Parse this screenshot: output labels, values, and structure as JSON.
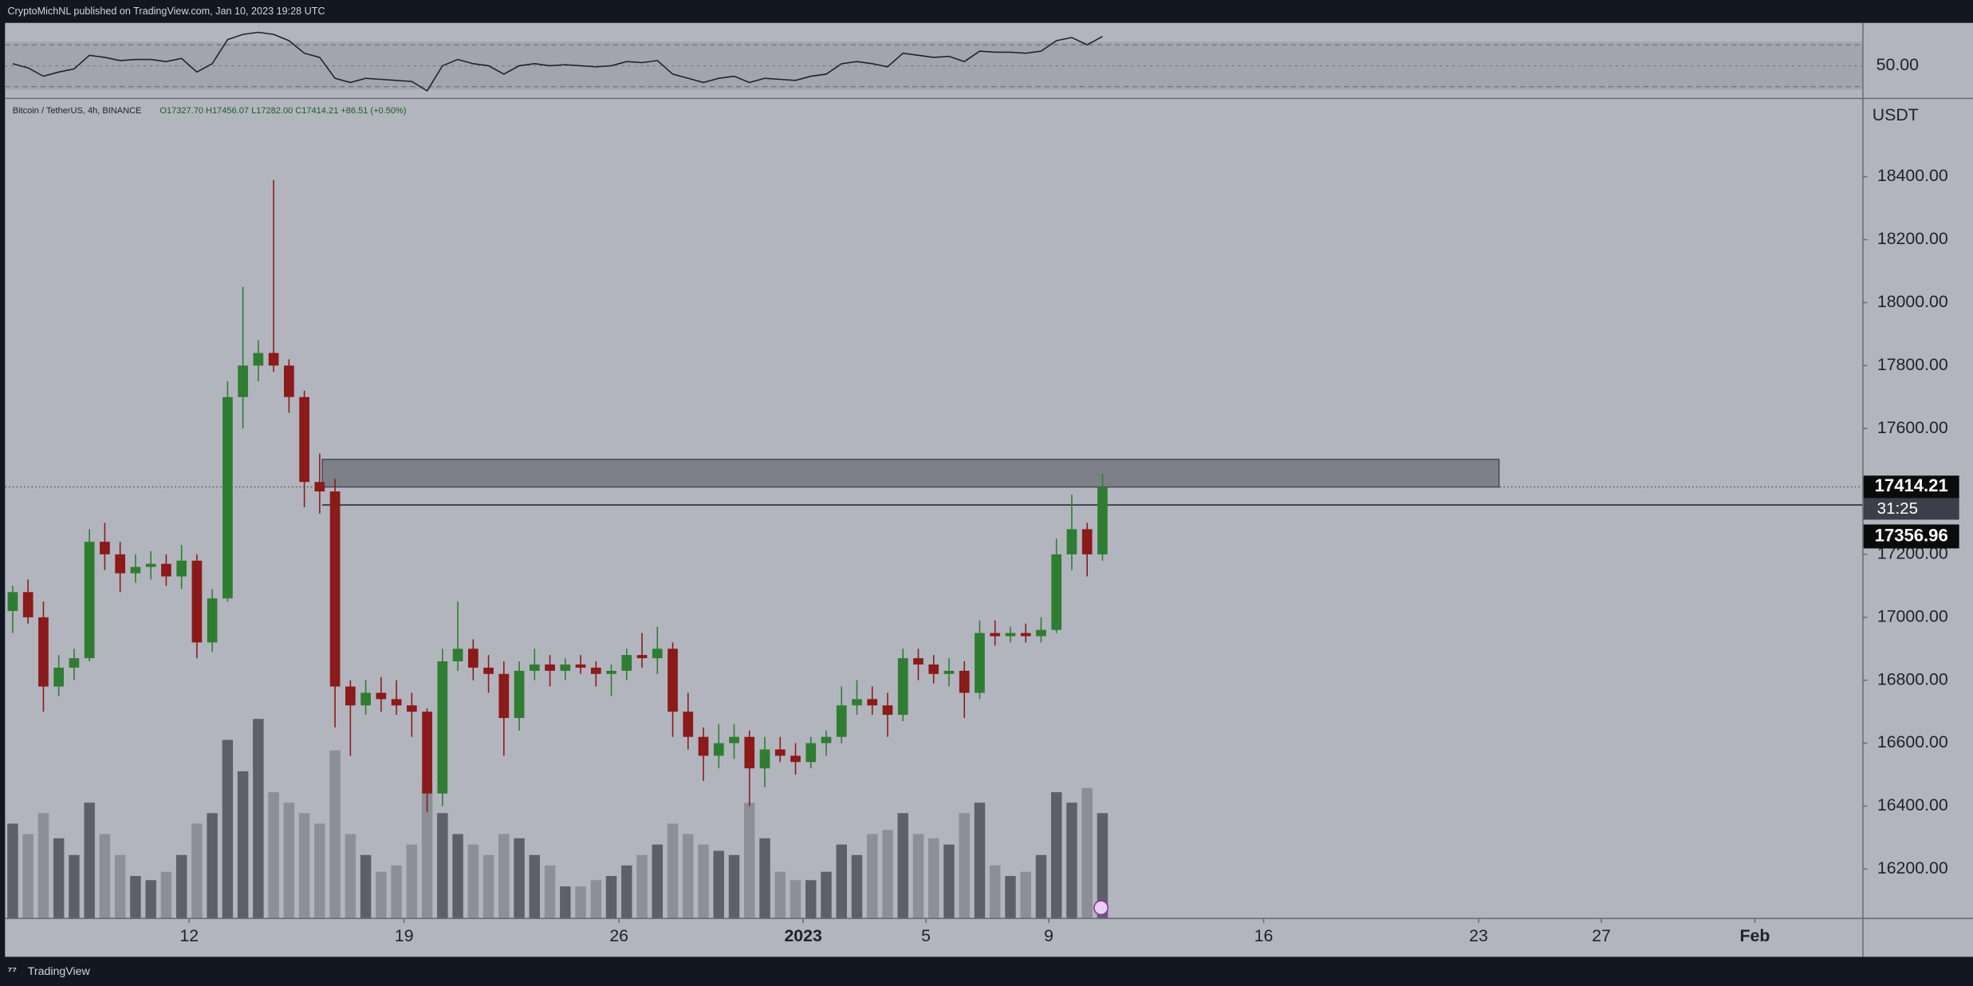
{
  "header": {
    "byline": "CryptoMichNL published on TradingView.com, Jan 10, 2023 19:28 UTC"
  },
  "footer": {
    "brand": "TradingView"
  },
  "chart_data": {
    "type": "candlestick",
    "symbol": "Bitcoin / TetherUS, 4h, BINANCE",
    "ohlc_label": "O17327.70 H17456.07 L17282.00 C17414.21 +86.51 (+0.50%)",
    "y_label": "USDT",
    "up_color": "#2f7d32",
    "down_color": "#8b1a1a",
    "volume_colors": {
      "up": "#5d606b",
      "down": "#8c8f98"
    },
    "xlim": [
      "2022-12-06 00:00",
      "2023-02-04 12:00"
    ],
    "xticks": [
      {
        "value": "2022-12-12",
        "label": "12"
      },
      {
        "value": "2022-12-19",
        "label": "19"
      },
      {
        "value": "2022-12-26",
        "label": "26"
      },
      {
        "value": "2023-01-01",
        "label": "2023"
      },
      {
        "value": "2023-01-05",
        "label": "5"
      },
      {
        "value": "2023-01-09",
        "label": "9"
      },
      {
        "value": "2023-01-16",
        "label": "16"
      },
      {
        "value": "2023-01-23",
        "label": "23"
      },
      {
        "value": "2023-01-27",
        "label": "27"
      },
      {
        "value": "2023-02-01",
        "label": "Feb"
      }
    ],
    "ylim": [
      16045,
      18645
    ],
    "yticks": [
      {
        "value": 16200,
        "label": "16200.00"
      },
      {
        "value": 16400,
        "label": "16400.00"
      },
      {
        "value": 16600,
        "label": "16600.00"
      },
      {
        "value": 16800,
        "label": "16800.00"
      },
      {
        "value": 17000,
        "label": "17000.00"
      },
      {
        "value": 17200,
        "label": "17200.00"
      },
      {
        "value": 17400,
        "label": "17400.00"
      },
      {
        "value": 17600,
        "label": "17600.00"
      },
      {
        "value": 17800,
        "label": "17800.00"
      },
      {
        "value": 18000,
        "label": "18000.00"
      },
      {
        "value": 18200,
        "label": "18200.00"
      },
      {
        "value": 18400,
        "label": "18400.00"
      }
    ],
    "x": [
      "2022-12-06 00:00",
      "2022-12-06 12:00",
      "2022-12-07 00:00",
      "2022-12-07 12:00",
      "2022-12-08 00:00",
      "2022-12-08 12:00",
      "2022-12-09 00:00",
      "2022-12-09 12:00",
      "2022-12-10 00:00",
      "2022-12-10 12:00",
      "2022-12-11 00:00",
      "2022-12-11 12:00",
      "2022-12-12 00:00",
      "2022-12-12 12:00",
      "2022-12-13 00:00",
      "2022-12-13 12:00",
      "2022-12-14 00:00",
      "2022-12-14 12:00",
      "2022-12-15 00:00",
      "2022-12-15 12:00",
      "2022-12-16 00:00",
      "2022-12-16 12:00",
      "2022-12-17 00:00",
      "2022-12-17 12:00",
      "2022-12-18 00:00",
      "2022-12-18 12:00",
      "2022-12-19 00:00",
      "2022-12-19 12:00",
      "2022-12-20 00:00",
      "2022-12-20 12:00",
      "2022-12-21 00:00",
      "2022-12-21 12:00",
      "2022-12-22 00:00",
      "2022-12-22 12:00",
      "2022-12-23 00:00",
      "2022-12-23 12:00",
      "2022-12-24 00:00",
      "2022-12-24 12:00",
      "2022-12-25 00:00",
      "2022-12-25 12:00",
      "2022-12-26 00:00",
      "2022-12-26 12:00",
      "2022-12-27 00:00",
      "2022-12-27 12:00",
      "2022-12-28 00:00",
      "2022-12-28 12:00",
      "2022-12-29 00:00",
      "2022-12-29 12:00",
      "2022-12-30 00:00",
      "2022-12-30 12:00",
      "2022-12-31 00:00",
      "2022-12-31 12:00",
      "2023-01-01 00:00",
      "2023-01-01 12:00",
      "2023-01-02 00:00",
      "2023-01-02 12:00",
      "2023-01-03 00:00",
      "2023-01-03 12:00",
      "2023-01-04 00:00",
      "2023-01-04 12:00",
      "2023-01-05 00:00",
      "2023-01-05 12:00",
      "2023-01-06 00:00",
      "2023-01-06 12:00",
      "2023-01-07 00:00",
      "2023-01-07 12:00",
      "2023-01-08 00:00",
      "2023-01-08 12:00",
      "2023-01-09 00:00",
      "2023-01-09 12:00",
      "2023-01-10 00:00",
      "2023-01-10 12:00"
    ],
    "open": [
      17020,
      17080,
      17000,
      16780,
      16840,
      16870,
      17240,
      17200,
      17140,
      17160,
      17170,
      17130,
      17180,
      16920,
      17060,
      17700,
      17800,
      17840,
      17800,
      17700,
      17430,
      17400,
      16780,
      16720,
      16760,
      16740,
      16720,
      16700,
      16440,
      16860,
      16900,
      16840,
      16820,
      16680,
      16830,
      16850,
      16830,
      16850,
      16840,
      16820,
      16830,
      16880,
      16870,
      16900,
      16700,
      16620,
      16560,
      16600,
      16620,
      16520,
      16580,
      16560,
      16540,
      16600,
      16620,
      16720,
      16740,
      16720,
      16690,
      16870,
      16850,
      16820,
      16830,
      16760,
      16950,
      16940,
      16950,
      16940,
      16960,
      17200,
      17280,
      17200
    ],
    "high": [
      17100,
      17120,
      17050,
      16880,
      16900,
      17280,
      17300,
      17240,
      17200,
      17210,
      17200,
      17230,
      17200,
      17090,
      17750,
      18050,
      17880,
      18390,
      17820,
      17720,
      17520,
      17440,
      16800,
      16800,
      16810,
      16800,
      16760,
      16710,
      16900,
      17050,
      16930,
      16880,
      16860,
      16860,
      16900,
      16880,
      16870,
      16880,
      16860,
      16850,
      16900,
      16950,
      16970,
      16920,
      16760,
      16650,
      16660,
      16660,
      16640,
      16620,
      16620,
      16600,
      16620,
      16640,
      16780,
      16800,
      16780,
      16760,
      16900,
      16900,
      16880,
      16870,
      16860,
      16990,
      16990,
      16970,
      16980,
      17000,
      17250,
      17390,
      17300,
      17456.07
    ],
    "low": [
      16950,
      16980,
      16700,
      16750,
      16800,
      16860,
      17150,
      17080,
      17110,
      17120,
      17100,
      17090,
      16870,
      16890,
      17050,
      17600,
      17750,
      17780,
      17650,
      17350,
      17330,
      16650,
      16560,
      16690,
      16700,
      16690,
      16620,
      16380,
      16400,
      16830,
      16800,
      16760,
      16560,
      16640,
      16800,
      16780,
      16800,
      16820,
      16780,
      16750,
      16800,
      16840,
      16820,
      16620,
      16580,
      16480,
      16520,
      16550,
      16400,
      16460,
      16540,
      16500,
      16520,
      16560,
      16600,
      16690,
      16690,
      16620,
      16670,
      16800,
      16790,
      16780,
      16680,
      16740,
      16910,
      16920,
      16920,
      16920,
      16950,
      17150,
      17130,
      17180
    ],
    "close": [
      17080,
      17000,
      16780,
      16840,
      16870,
      17240,
      17200,
      17140,
      17160,
      17170,
      17130,
      17180,
      16920,
      17060,
      17700,
      17800,
      17840,
      17800,
      17700,
      17430,
      17400,
      16780,
      16720,
      16760,
      16740,
      16720,
      16700,
      16440,
      16860,
      16900,
      16840,
      16820,
      16680,
      16830,
      16850,
      16830,
      16850,
      16840,
      16820,
      16830,
      16880,
      16870,
      16900,
      16700,
      16620,
      16560,
      16600,
      16620,
      16520,
      16580,
      16560,
      16540,
      16600,
      16620,
      16720,
      16740,
      16720,
      16690,
      16870,
      16850,
      16820,
      16830,
      16760,
      16950,
      16940,
      16950,
      16940,
      16960,
      17200,
      17280,
      17200,
      17414.21
    ],
    "volume": [
      45,
      40,
      50,
      38,
      30,
      55,
      40,
      30,
      20,
      18,
      22,
      30,
      45,
      50,
      85,
      70,
      95,
      60,
      55,
      50,
      45,
      80,
      40,
      30,
      22,
      25,
      35,
      65,
      50,
      40,
      35,
      30,
      40,
      38,
      30,
      25,
      15,
      15,
      18,
      20,
      25,
      30,
      35,
      45,
      40,
      35,
      32,
      30,
      55,
      38,
      22,
      18,
      18,
      22,
      35,
      30,
      40,
      42,
      50,
      40,
      38,
      35,
      50,
      55,
      25,
      20,
      22,
      30,
      60,
      55,
      62,
      50
    ],
    "current_price": 17414.21,
    "countdown": "31:25",
    "zone": {
      "from": "2022-12-16 08:00",
      "to": "2023-01-23 16:00",
      "low": 17414,
      "high": 17502,
      "color": "#7d8089"
    },
    "level": {
      "value": 17356.96,
      "from": "2022-12-16 08:00"
    },
    "rsi": {
      "color": "#1e222d",
      "ylim": [
        20,
        91
      ],
      "yticks": [
        {
          "value": 50,
          "label": "50.00"
        }
      ],
      "bands": [
        30,
        70
      ],
      "values": [
        52,
        48,
        40,
        44,
        47,
        60,
        58,
        55,
        56,
        56,
        54,
        57,
        44,
        52,
        75,
        80,
        82,
        80,
        74,
        62,
        58,
        38,
        34,
        38,
        37,
        36,
        35,
        26,
        50,
        56,
        52,
        50,
        42,
        50,
        52,
        50,
        51,
        50,
        49,
        50,
        54,
        53,
        55,
        42,
        38,
        34,
        38,
        40,
        34,
        38,
        37,
        36,
        40,
        42,
        52,
        54,
        52,
        49,
        62,
        60,
        58,
        59,
        54,
        64,
        63,
        63,
        62,
        64,
        74,
        77,
        70,
        78
      ]
    }
  }
}
